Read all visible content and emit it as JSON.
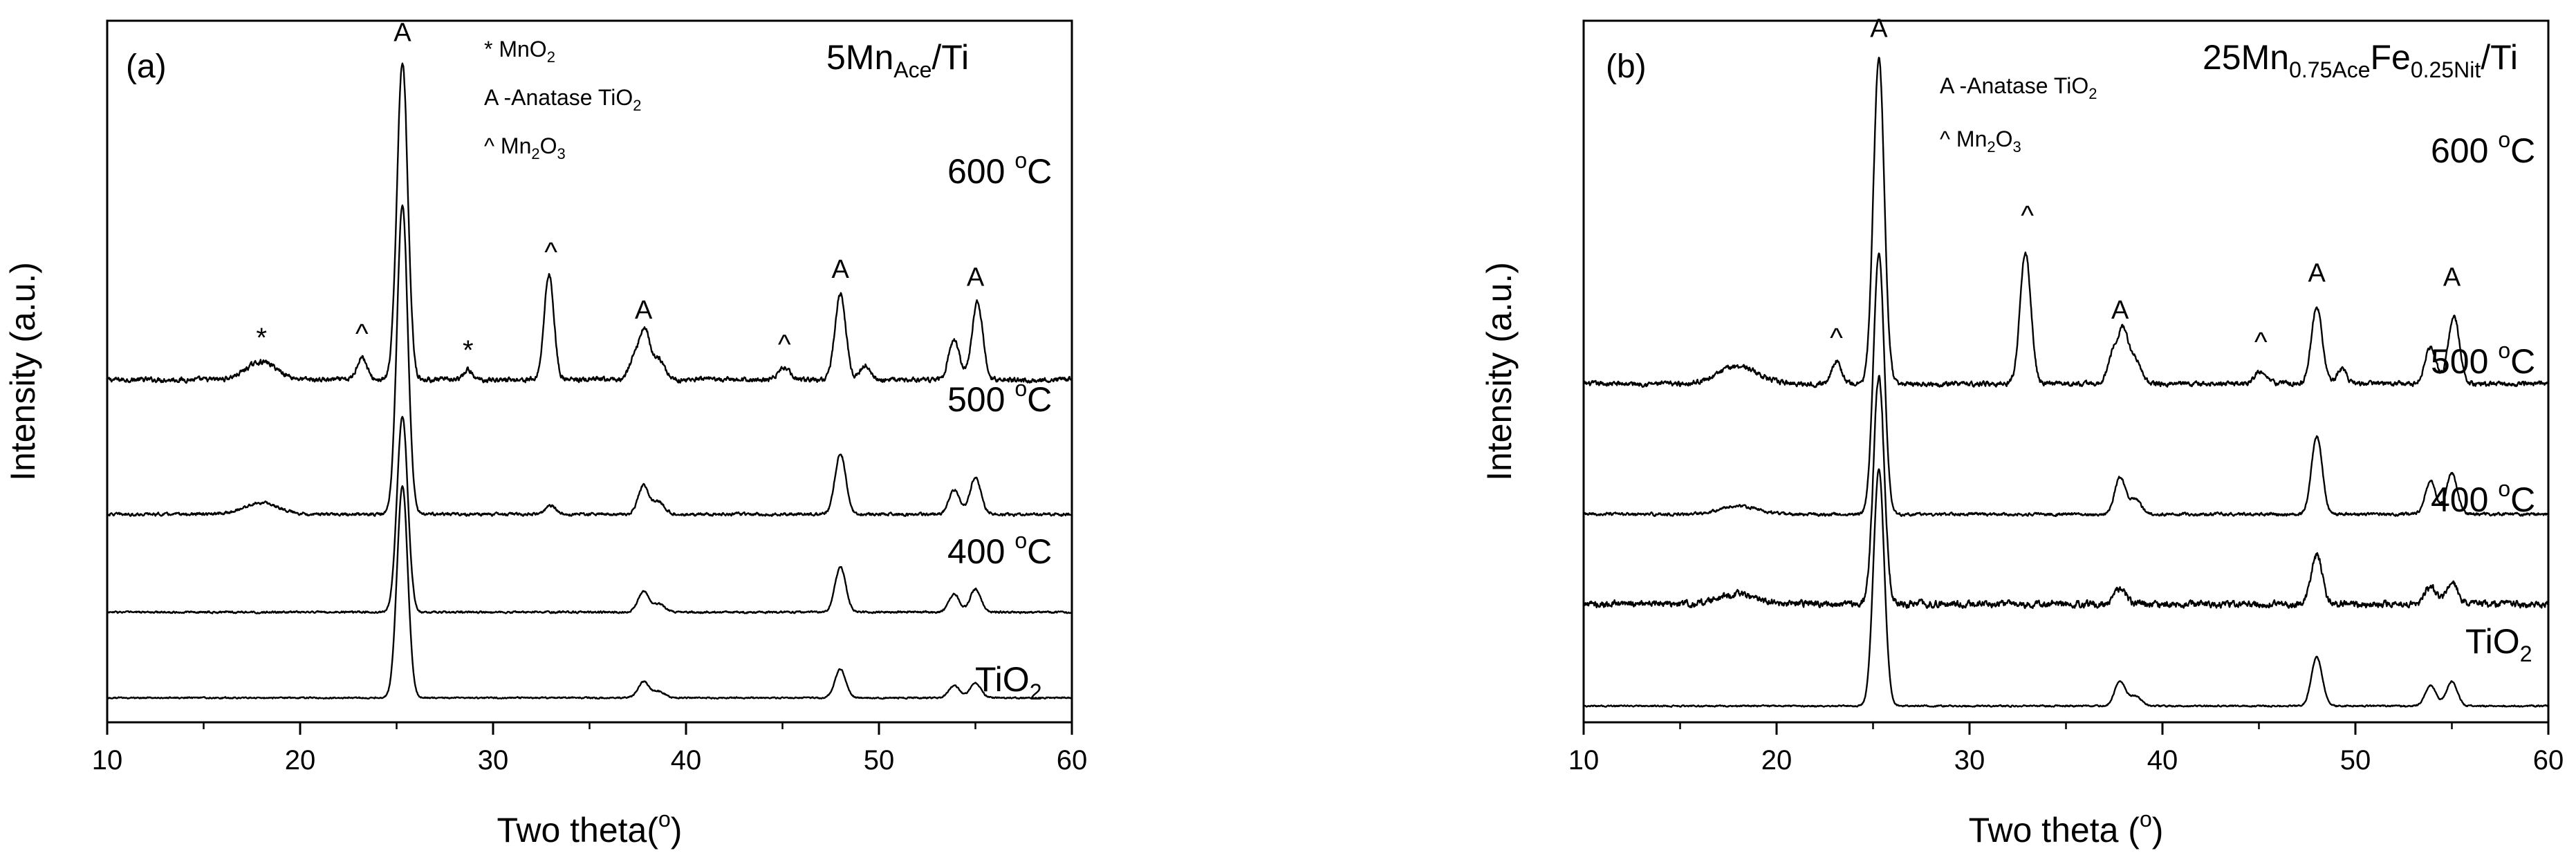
{
  "chart_data": [
    {
      "type": "line",
      "panel_label": "(a)",
      "sample_title": {
        "main": "5Mn",
        "sub": "Ace",
        "rest": "/Ti"
      },
      "xlabel": "Two theta(",
      "xlabel_sup": "o",
      "xlabel_end": ")",
      "ylabel": "Intensity (a.u.)",
      "xlim": [
        10,
        60
      ],
      "xticks": [
        "10",
        "20",
        "30",
        "40",
        "50",
        "60"
      ],
      "yticks": [],
      "legend": {
        "star_label": "* MnO",
        "star_sub": "2",
        "anatase_label": "A -Anatase TiO",
        "anatase_sub": "2",
        "caret_label": "^ Mn",
        "caret_sub1": "2",
        "caret_mid": "O",
        "caret_sub2": "3"
      },
      "series": [
        {
          "name": "600 °C",
          "label_main": "600 ",
          "label_sup": "o",
          "label_end": "C",
          "baseline": 4.2,
          "noise": 0.05,
          "peaks": [
            [
              18.0,
              0.22,
              0.8
            ],
            [
              23.2,
              0.28,
              0.25
            ],
            [
              25.3,
              3.9,
              0.28
            ],
            [
              28.7,
              0.12,
              0.2
            ],
            [
              32.9,
              1.3,
              0.25
            ],
            [
              37.4,
              0.3,
              0.3
            ],
            [
              37.9,
              0.55,
              0.25
            ],
            [
              38.6,
              0.25,
              0.3
            ],
            [
              45.1,
              0.15,
              0.3
            ],
            [
              48.0,
              1.05,
              0.28
            ],
            [
              49.3,
              0.18,
              0.25
            ],
            [
              53.9,
              0.48,
              0.28
            ],
            [
              55.1,
              0.95,
              0.28
            ]
          ]
        },
        {
          "name": "500 °C",
          "label_main": "500 ",
          "label_sup": "o",
          "label_end": "C",
          "baseline": 2.55,
          "noise": 0.03,
          "peaks": [
            [
              18.0,
              0.14,
              0.9
            ],
            [
              25.3,
              3.8,
              0.28
            ],
            [
              33.0,
              0.1,
              0.3
            ],
            [
              37.8,
              0.35,
              0.28
            ],
            [
              38.6,
              0.15,
              0.3
            ],
            [
              48.0,
              0.75,
              0.28
            ],
            [
              53.9,
              0.3,
              0.28
            ],
            [
              55.0,
              0.45,
              0.28
            ]
          ]
        },
        {
          "name": "400 °C",
          "label_main": "400 ",
          "label_sup": "o",
          "label_end": "C",
          "baseline": 1.35,
          "noise": 0.02,
          "peaks": [
            [
              25.3,
              2.4,
              0.28
            ],
            [
              37.8,
              0.25,
              0.28
            ],
            [
              38.6,
              0.1,
              0.3
            ],
            [
              48.0,
              0.55,
              0.28
            ],
            [
              53.9,
              0.22,
              0.28
            ],
            [
              55.0,
              0.28,
              0.28
            ]
          ]
        },
        {
          "name": "TiO2",
          "label_main": "TiO",
          "label_sub": "2",
          "baseline": 0.3,
          "noise": 0.015,
          "peaks": [
            [
              25.3,
              2.6,
              0.28
            ],
            [
              37.8,
              0.2,
              0.28
            ],
            [
              38.6,
              0.08,
              0.3
            ],
            [
              48.0,
              0.35,
              0.28
            ],
            [
              53.9,
              0.15,
              0.28
            ],
            [
              55.0,
              0.18,
              0.28
            ]
          ]
        }
      ],
      "annotations": [
        {
          "text": "A",
          "x": 25.3,
          "y": 8.35
        },
        {
          "text": "*",
          "x": 18.0,
          "y": 4.6
        },
        {
          "text": "^",
          "x": 23.2,
          "y": 4.65
        },
        {
          "text": "*",
          "x": 28.7,
          "y": 4.45
        },
        {
          "text": "^",
          "x": 33.0,
          "y": 5.65
        },
        {
          "text": "A",
          "x": 37.8,
          "y": 4.95
        },
        {
          "text": "^",
          "x": 45.1,
          "y": 4.52
        },
        {
          "text": "A",
          "x": 48.0,
          "y": 5.45
        },
        {
          "text": "A",
          "x": 55.0,
          "y": 5.35
        }
      ],
      "ylim": [
        0,
        8.6
      ]
    },
    {
      "type": "line",
      "panel_label": "(b)",
      "sample_title": {
        "main": "25Mn",
        "sub": "0.75Ace",
        "mid": "Fe",
        "sub2": "0.25Nit",
        "rest": "/Ti"
      },
      "xlabel": "Two theta (",
      "xlabel_sup": "o",
      "xlabel_end": ")",
      "ylabel": "Intensity (a.u.)",
      "xlim": [
        10,
        60
      ],
      "xticks": [
        "10",
        "20",
        "30",
        "40",
        "50",
        "60"
      ],
      "yticks": [],
      "legend": {
        "anatase_label": "A -Anatase TiO",
        "anatase_sub": "2",
        "caret_label": "^ Mn",
        "caret_sub1": "2",
        "caret_mid": "O",
        "caret_sub2": "3"
      },
      "series": [
        {
          "name": "600 °C",
          "label_main": "600 ",
          "label_sup": "o",
          "label_end": "C",
          "baseline": 4.15,
          "noise": 0.05,
          "peaks": [
            [
              18.0,
              0.22,
              1.0
            ],
            [
              23.1,
              0.28,
              0.25
            ],
            [
              25.3,
              4.0,
              0.28
            ],
            [
              32.9,
              1.6,
              0.28
            ],
            [
              37.5,
              0.4,
              0.3
            ],
            [
              38.0,
              0.55,
              0.25
            ],
            [
              38.6,
              0.3,
              0.3
            ],
            [
              45.1,
              0.15,
              0.3
            ],
            [
              48.0,
              0.95,
              0.28
            ],
            [
              49.3,
              0.18,
              0.25
            ],
            [
              53.9,
              0.45,
              0.28
            ],
            [
              55.1,
              0.85,
              0.28
            ]
          ]
        },
        {
          "name": "500 °C",
          "label_main": "500 ",
          "label_sup": "o",
          "label_end": "C",
          "baseline": 2.55,
          "noise": 0.03,
          "peaks": [
            [
              18.0,
              0.1,
              1.0
            ],
            [
              25.3,
              3.2,
              0.28
            ],
            [
              37.8,
              0.45,
              0.28
            ],
            [
              38.6,
              0.18,
              0.3
            ],
            [
              48.0,
              0.95,
              0.28
            ],
            [
              53.9,
              0.4,
              0.28
            ],
            [
              55.0,
              0.5,
              0.28
            ]
          ]
        },
        {
          "name": "400 °C",
          "label_main": "400 ",
          "label_sup": "o",
          "label_end": "C",
          "baseline": 1.45,
          "noise": 0.07,
          "peaks": [
            [
              18.0,
              0.12,
              1.0
            ],
            [
              25.3,
              2.8,
              0.28
            ],
            [
              37.8,
              0.2,
              0.28
            ],
            [
              48.0,
              0.6,
              0.28
            ],
            [
              53.9,
              0.22,
              0.28
            ],
            [
              55.0,
              0.28,
              0.28
            ]
          ]
        },
        {
          "name": "TiO2",
          "label_main": "TiO",
          "label_sub": "2",
          "baseline": 0.2,
          "noise": 0.015,
          "peaks": [
            [
              25.3,
              2.9,
              0.28
            ],
            [
              37.8,
              0.3,
              0.28
            ],
            [
              38.6,
              0.12,
              0.3
            ],
            [
              48.0,
              0.6,
              0.28
            ],
            [
              53.9,
              0.25,
              0.28
            ],
            [
              55.0,
              0.3,
              0.28
            ]
          ]
        }
      ],
      "annotations": [
        {
          "text": "A",
          "x": 25.3,
          "y": 8.4
        },
        {
          "text": "^",
          "x": 23.1,
          "y": 4.6
        },
        {
          "text": "^",
          "x": 33.0,
          "y": 6.1
        },
        {
          "text": "A",
          "x": 37.8,
          "y": 4.95
        },
        {
          "text": "^",
          "x": 45.1,
          "y": 4.55
        },
        {
          "text": "A",
          "x": 48.0,
          "y": 5.4
        },
        {
          "text": "A",
          "x": 55.0,
          "y": 5.35
        }
      ],
      "ylim": [
        0,
        8.6
      ]
    }
  ]
}
